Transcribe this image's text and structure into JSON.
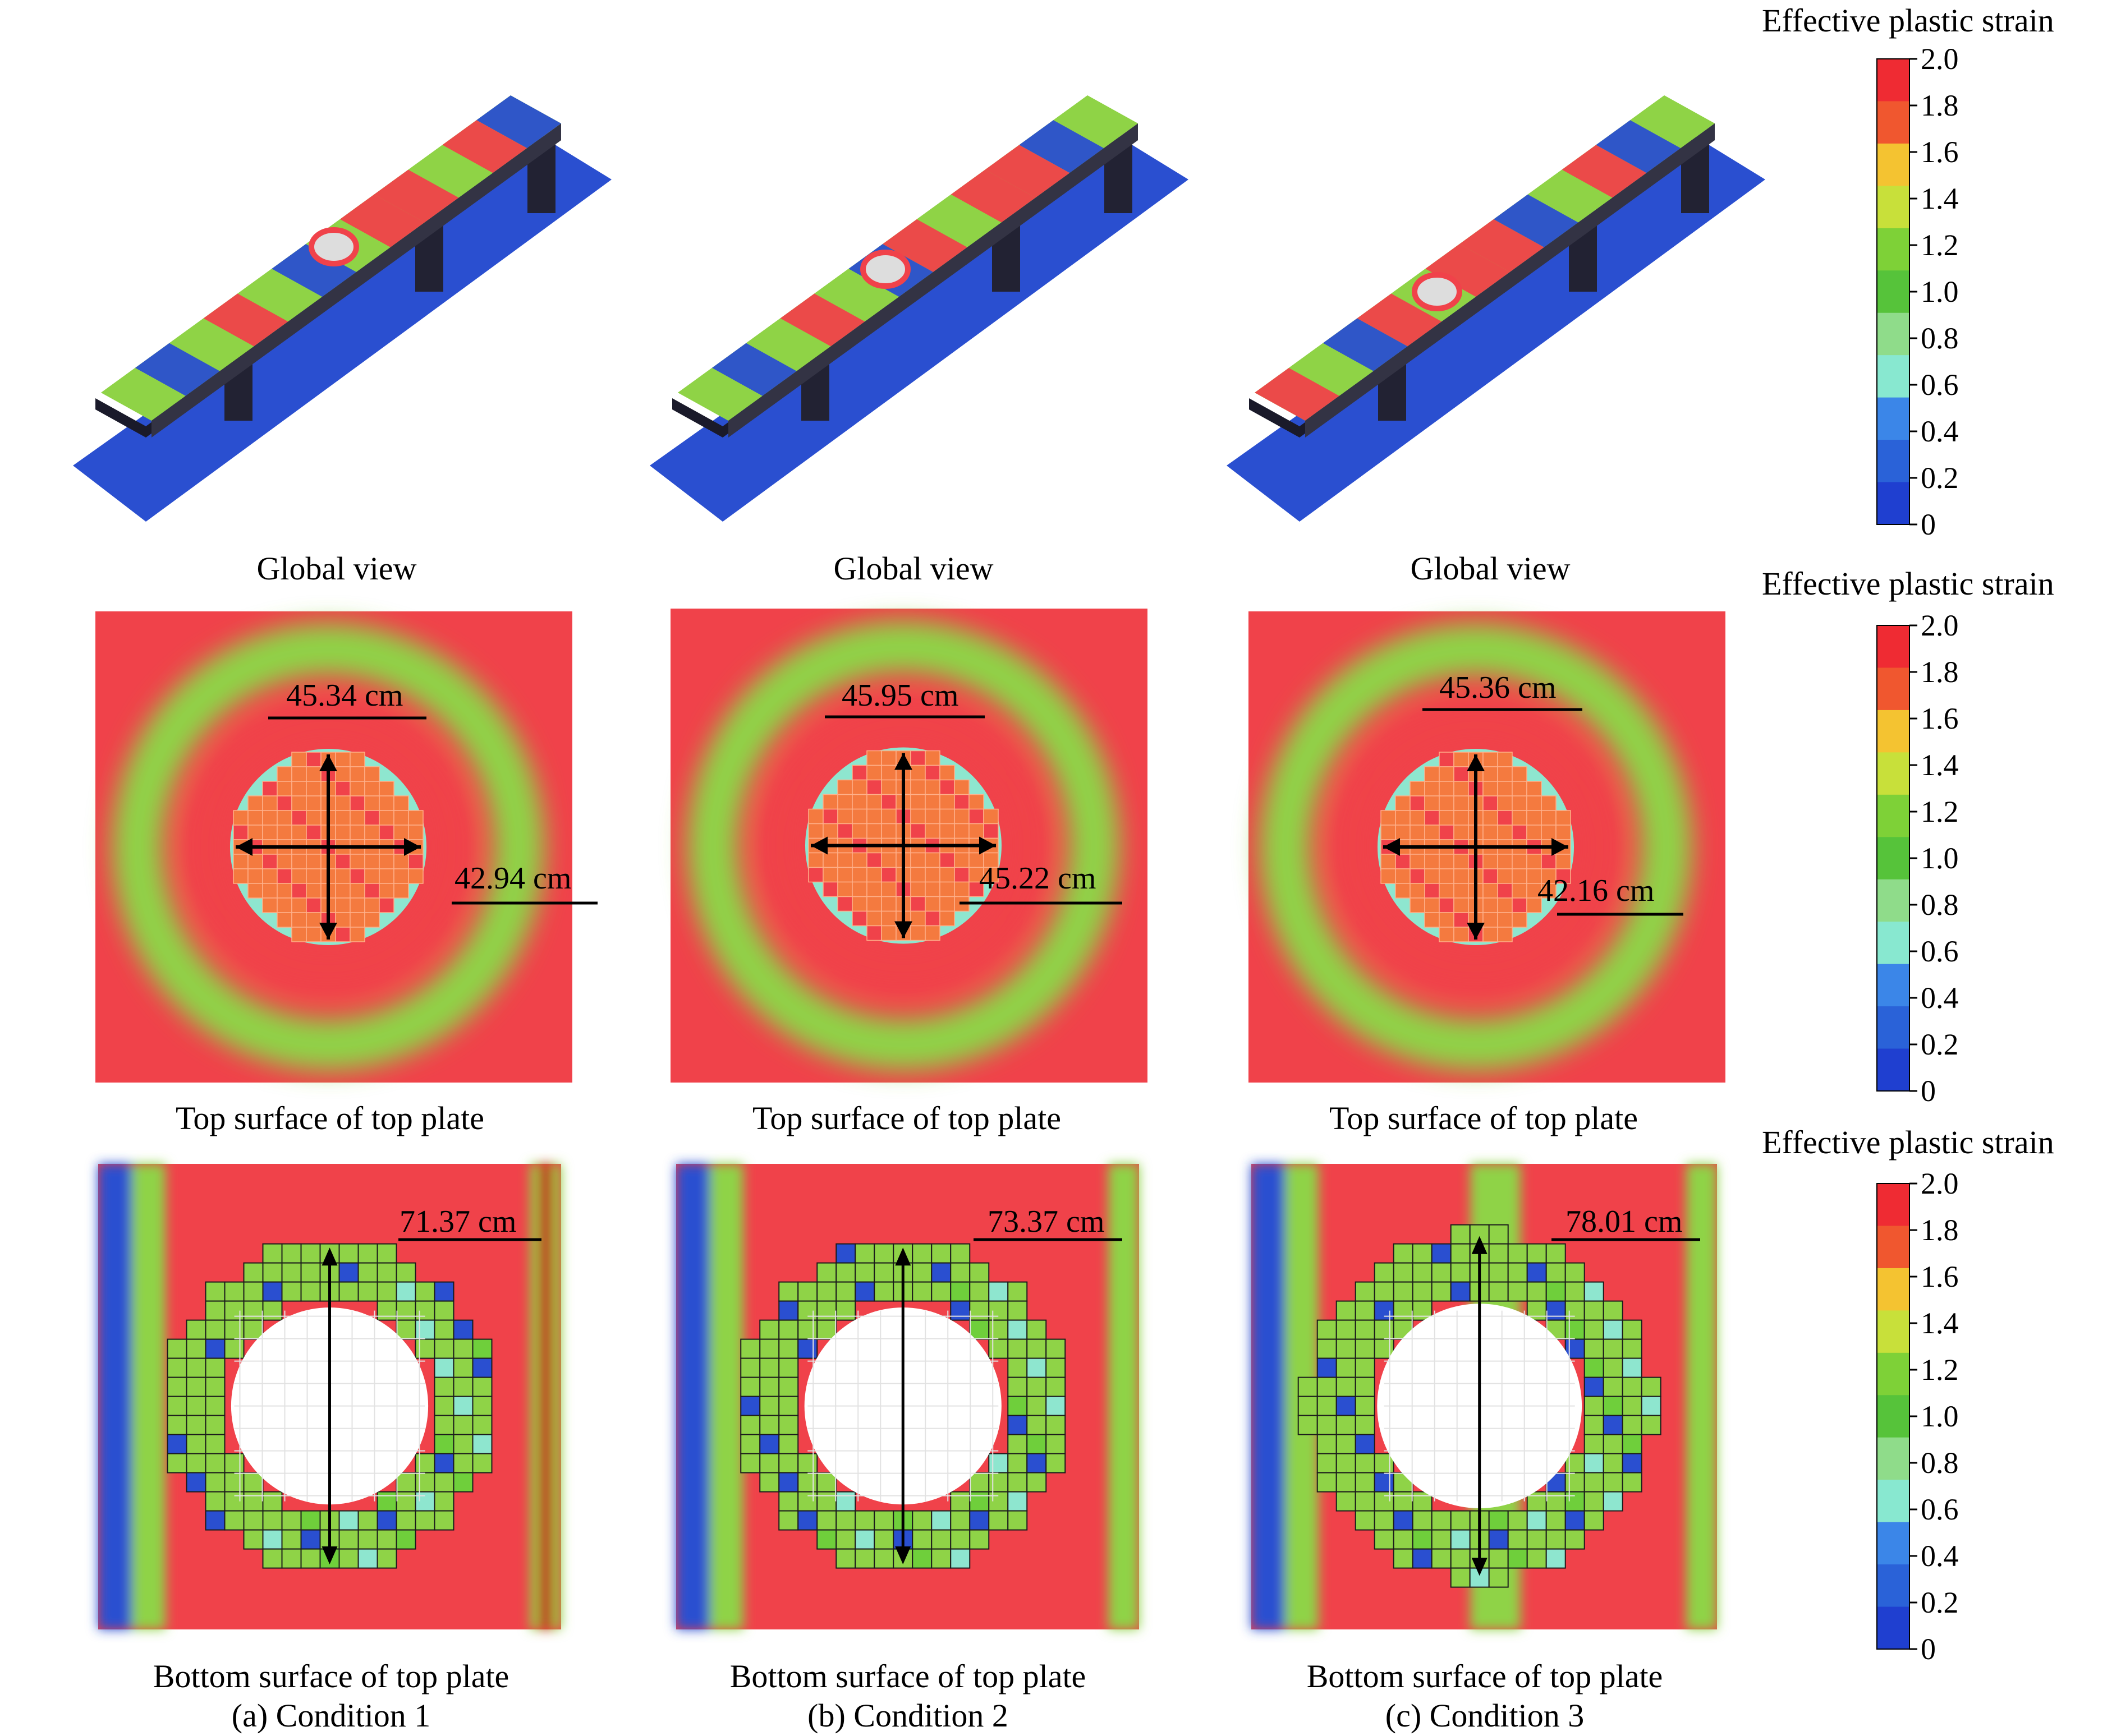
{
  "figure": {
    "row_captions": {
      "global": "Global view",
      "top": "Top surface of top plate",
      "bottom": "Bottom surface of top plate"
    },
    "conditions": [
      {
        "label": "(a) Condition 1",
        "top_horizontal": "45.34 cm",
        "top_vertical": "42.94 cm",
        "bottom_diameter": "71.37 cm"
      },
      {
        "label": "(b) Condition 2",
        "top_horizontal": "45.95 cm",
        "top_vertical": "45.22 cm",
        "bottom_diameter": "73.37 cm"
      },
      {
        "label": "(c) Condition 3",
        "top_horizontal": "45.36 cm",
        "top_vertical": "42.16 cm",
        "bottom_diameter": "78.01 cm"
      }
    ],
    "legend": {
      "title": "Effective plastic strain",
      "ticks": [
        "2.0",
        "1.8",
        "1.6",
        "1.4",
        "1.2",
        "1.0",
        "0.8",
        "0.6",
        "0.4",
        "0.2",
        "0"
      ],
      "colors": [
        "#ef2b33",
        "#f0572f",
        "#f4c331",
        "#c8e03a",
        "#7ed137",
        "#56c33a",
        "#8fdc8a",
        "#88e8d0",
        "#3b86e8",
        "#2a62d8",
        "#1f3fd0"
      ]
    },
    "colors": {
      "red": "#f0424a",
      "green": "#8fd347",
      "blue": "#2a4fd0",
      "cyan": "#8ee6cf",
      "orange": "#f47a3f"
    }
  }
}
